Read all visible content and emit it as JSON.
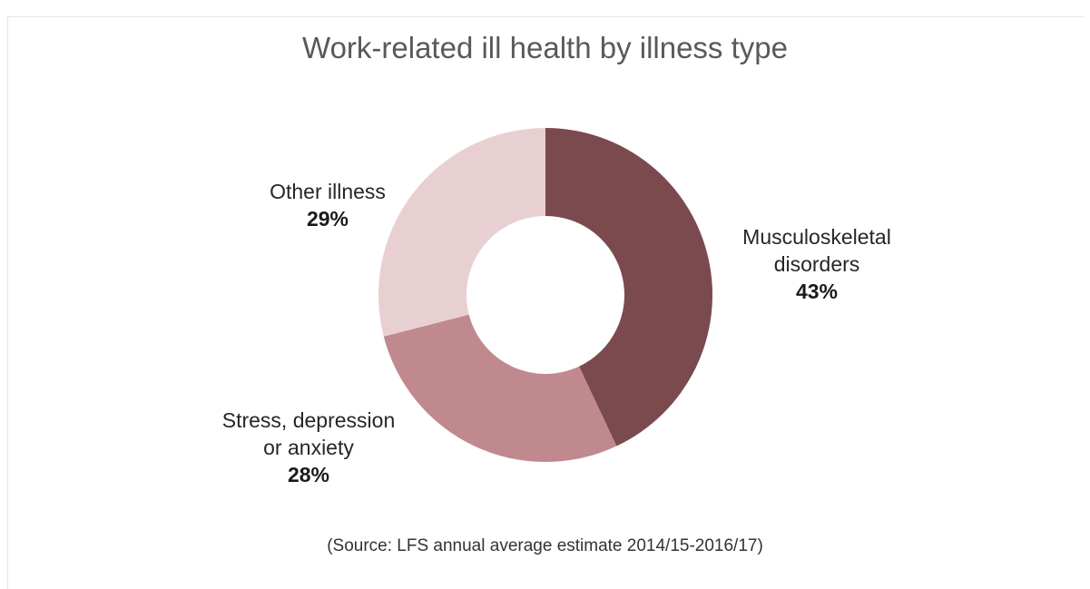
{
  "chart_data": {
    "type": "pie",
    "title": "Work-related ill health by illness type",
    "source": "(Source: LFS annual average estimate 2014/15-2016/17)",
    "donut": true,
    "slices": [
      {
        "label_lines": [
          "Musculoskeletal",
          "disorders"
        ],
        "percent_label": "43%",
        "value": 43,
        "color": "#7a4a4e"
      },
      {
        "label_lines": [
          "Stress, depression",
          "or anxiety"
        ],
        "percent_label": "28%",
        "value": 28,
        "color": "#c0898d"
      },
      {
        "label_lines": [
          "Other illness"
        ],
        "percent_label": "29%",
        "value": 29,
        "color": "#e8d0d2"
      }
    ]
  }
}
